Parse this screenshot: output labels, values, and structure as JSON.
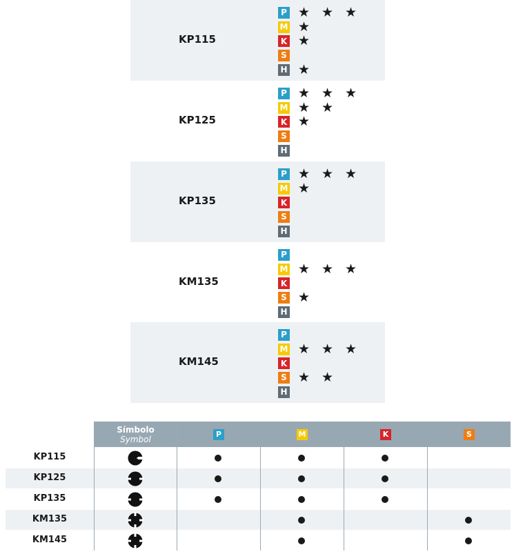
{
  "grades": [
    {
      "name": "KP115",
      "shaded": true,
      "rows": [
        {
          "m": "P",
          "stars": 3
        },
        {
          "m": "M",
          "stars": 1
        },
        {
          "m": "K",
          "stars": 1
        },
        {
          "m": "S",
          "stars": 0
        },
        {
          "m": "H",
          "stars": 1
        }
      ]
    },
    {
      "name": "KP125",
      "shaded": false,
      "rows": [
        {
          "m": "P",
          "stars": 3
        },
        {
          "m": "M",
          "stars": 2
        },
        {
          "m": "K",
          "stars": 1
        },
        {
          "m": "S",
          "stars": 0
        },
        {
          "m": "H",
          "stars": 0
        }
      ]
    },
    {
      "name": "KP135",
      "shaded": true,
      "rows": [
        {
          "m": "P",
          "stars": 3
        },
        {
          "m": "M",
          "stars": 1
        },
        {
          "m": "K",
          "stars": 0
        },
        {
          "m": "S",
          "stars": 0
        },
        {
          "m": "H",
          "stars": 0
        }
      ]
    },
    {
      "name": "KM135",
      "shaded": false,
      "rows": [
        {
          "m": "P",
          "stars": 0
        },
        {
          "m": "M",
          "stars": 3
        },
        {
          "m": "K",
          "stars": 0
        },
        {
          "m": "S",
          "stars": 1
        },
        {
          "m": "H",
          "stars": 0
        }
      ]
    },
    {
      "name": "KM145",
      "shaded": true,
      "rows": [
        {
          "m": "P",
          "stars": 0
        },
        {
          "m": "M",
          "stars": 3
        },
        {
          "m": "K",
          "stars": 0
        },
        {
          "m": "S",
          "stars": 2
        },
        {
          "m": "H",
          "stars": 0
        }
      ]
    }
  ],
  "colors": {
    "P": "#2b9fc9",
    "M": "#f7c900",
    "K": "#d7242a",
    "S": "#ee7d12",
    "H": "#5f6b75",
    "header": "#98a8b3",
    "shade": "#eef1f4"
  },
  "table": {
    "symbol_title": "Símbolo",
    "symbol_subtitle": "Symbol",
    "columns": [
      "P",
      "M",
      "K",
      "S"
    ],
    "rows": [
      {
        "name": "KP115",
        "symbol": "round-notch-1-icon",
        "P": true,
        "M": true,
        "K": true,
        "S": false
      },
      {
        "name": "KP125",
        "symbol": "round-notch-2-icon",
        "P": true,
        "M": true,
        "K": true,
        "S": false
      },
      {
        "name": "KP135",
        "symbol": "round-notch-2-icon",
        "P": true,
        "M": true,
        "K": true,
        "S": false
      },
      {
        "name": "KM135",
        "symbol": "round-notch-4-icon",
        "P": false,
        "M": true,
        "K": false,
        "S": true
      },
      {
        "name": "KM145",
        "symbol": "round-notch-4-icon",
        "P": false,
        "M": true,
        "K": false,
        "S": true
      }
    ]
  }
}
